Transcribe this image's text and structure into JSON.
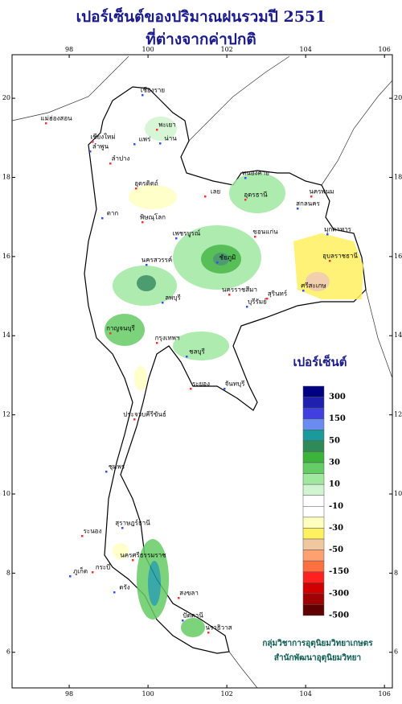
{
  "header": {
    "title": "เปอร์เซ็นต์ของปริมาณฝนรวมปี 2551",
    "subtitle": "ที่ต่างจากค่าปกติ"
  },
  "map": {
    "xlim": [
      96.55,
      106.2
    ],
    "ylim": [
      5.1,
      21.1
    ],
    "xticks": [
      98,
      100,
      102,
      104,
      106
    ],
    "yticks": [
      6,
      8,
      10,
      12,
      14,
      16,
      18,
      20
    ],
    "provinces": [
      "แม่ฮ่องสอน",
      "เชียงราย",
      "พะเยา",
      "น่าน",
      "เชียงใหม่",
      "ลำพูน",
      "ลำปาง",
      "แพร่",
      "อุตรดิตถ์",
      "ตาก",
      "พิษณุโลก",
      "เพชรบูรณ์",
      "เลย",
      "หนองคาย",
      "อุดรธานี",
      "สกลนคร",
      "นครพนม",
      "มุกดาหาร",
      "ขอนแก่น",
      "ชัยภูมิ",
      "นครราชสีมา",
      "บุรีรัมย์",
      "สุรินทร์",
      "ศรีสะเกษ",
      "อุบลราชธานี",
      "นครสวรรค์",
      "กาญจนบุรี",
      "ลพบุรี",
      "กรุงเทพฯ",
      "ชลบุรี",
      "ระยอง",
      "จันทบุรี",
      "ประจวบคีรีขันธ์",
      "ชุมพร",
      "ระนอง",
      "สุราษฎร์ธานี",
      "นครศรีธรรมราช",
      "ภูเก็ต",
      "กระบี่",
      "ตรัง",
      "สงขลา",
      "ปัตตานี",
      "นราธิวาส"
    ]
  },
  "legend": {
    "title": "เปอร์เซ็นต์",
    "labels": [
      300,
      150,
      50,
      30,
      10,
      -10,
      -30,
      -50,
      -150,
      -300,
      -500
    ],
    "colors": [
      "#000080",
      "#2020b0",
      "#4040e0",
      "#6a8cf0",
      "#1a9a9a",
      "#2e8b57",
      "#3cb43c",
      "#66cc66",
      "#a0e8a0",
      "#d0f5d0",
      "#ffffff",
      "#ffffff",
      "#ffffc0",
      "#fff060",
      "#f0c8a0",
      "#ffa070",
      "#ff7040",
      "#ff2020",
      "#d00000",
      "#a00000",
      "#600000"
    ]
  },
  "credits": [
    "กลุ่มวิชาการอุตุนิยมวิทยาเกษตร",
    "สำนักพัฒนาอุตุนิยมวิทยา"
  ]
}
